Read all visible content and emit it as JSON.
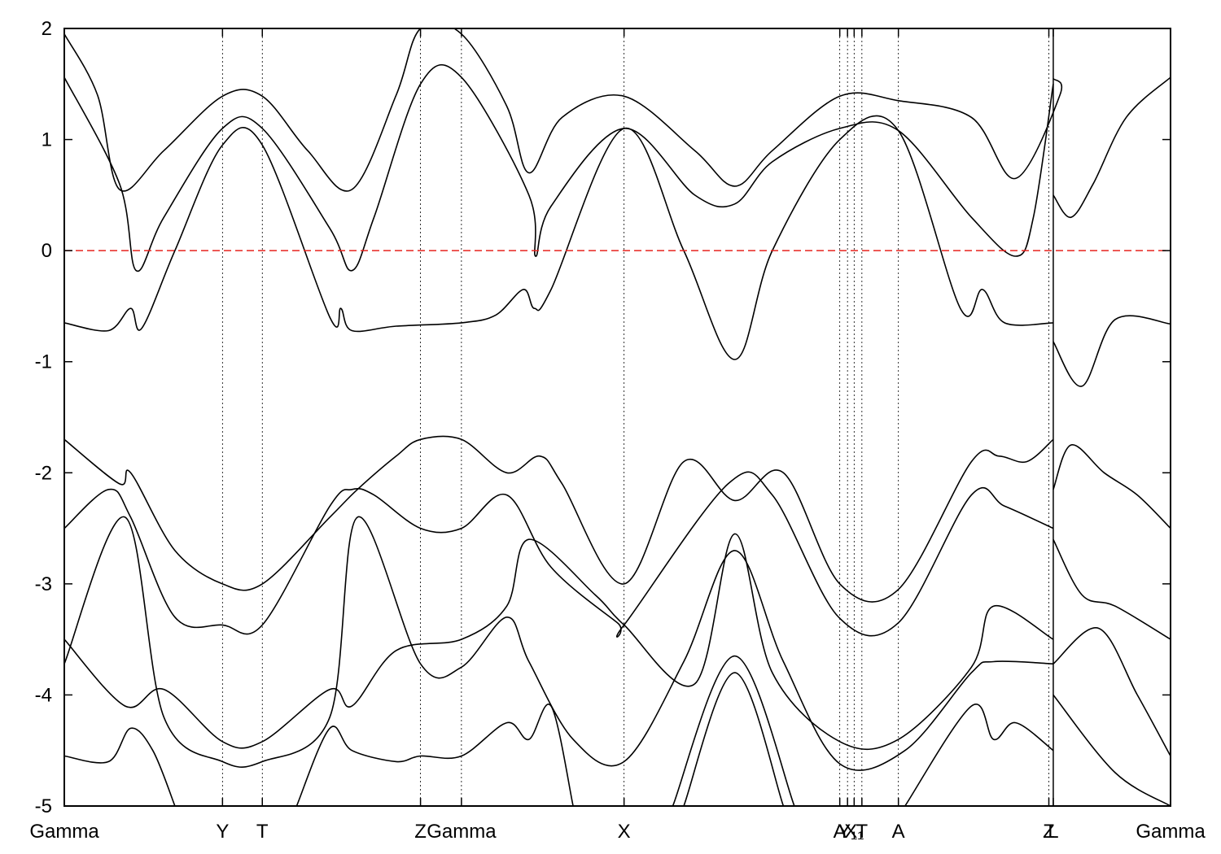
{
  "chart_data": {
    "type": "line",
    "title": "",
    "xlabel": "",
    "ylabel": "",
    "ylim": [
      -5,
      2
    ],
    "xlim": [
      0,
      1
    ],
    "grid": "vertical dotted lines at high-symmetry points",
    "yticks": [
      "2",
      "1",
      "0",
      "-1",
      "-2",
      "-3",
      "-4",
      "-5"
    ],
    "ytick_values": [
      2,
      1,
      0,
      -1,
      -2,
      -3,
      -4,
      -5
    ],
    "xticks": [
      {
        "label": "Gamma",
        "x": 0.0
      },
      {
        "label": "Y",
        "x": 0.143
      },
      {
        "label": "T",
        "x": 0.179
      },
      {
        "label": "Z",
        "x": 0.322
      },
      {
        "label": "Gamma",
        "x": 0.359
      },
      {
        "label": "X",
        "x": 0.506
      },
      {
        "label": "A",
        "x": 0.701
      },
      {
        "label": "Y₁",
        "x": 0.708
      },
      {
        "label": "X₁",
        "x": 0.714
      },
      {
        "label": "T",
        "x": 0.721
      },
      {
        "label": "A",
        "x": 0.754
      },
      {
        "label": "Z",
        "x": 0.89
      },
      {
        "label": "L",
        "x": 0.894
      },
      {
        "label": "Gamma",
        "x": 1.0
      }
    ],
    "fermi_level": {
      "y": 0,
      "color": "#e8231f",
      "style": "dashed"
    },
    "segment_break_x": 0.894,
    "line_color": "#000000",
    "series": [
      {
        "x": [
          0,
          0.05,
          0.065,
          0.09,
          0.143,
          0.179,
          0.24,
          0.26,
          0.28,
          0.322,
          0.359,
          0.42,
          0.426,
          0.44,
          0.506,
          0.57,
          0.606,
          0.64,
          0.701,
          0.754,
          0.82,
          0.86,
          0.876,
          0.894
        ],
        "values": [
          1.56,
          0.6,
          -0.18,
          0.3,
          1.1,
          1.1,
          0.2,
          -0.18,
          0.3,
          1.5,
          1.56,
          0.5,
          -0.05,
          0.4,
          1.1,
          0.5,
          0.42,
          0.8,
          1.1,
          1.08,
          0.3,
          -0.05,
          0.3,
          1.5
        ]
      },
      {
        "x": [
          0,
          0.03,
          0.05,
          0.09,
          0.143,
          0.179,
          0.22,
          0.26,
          0.3,
          0.322,
          0.359,
          0.4,
          0.42,
          0.45,
          0.506,
          0.57,
          0.606,
          0.64,
          0.701,
          0.754,
          0.82,
          0.86,
          0.9,
          0.894
        ],
        "values": [
          1.95,
          1.4,
          0.55,
          0.9,
          1.39,
          1.39,
          0.9,
          0.55,
          1.4,
          2.0,
          1.95,
          1.3,
          0.7,
          1.2,
          1.39,
          0.9,
          0.58,
          0.9,
          1.39,
          1.35,
          1.2,
          0.65,
          1.4,
          1.55
        ]
      },
      {
        "x": [
          0,
          0.04,
          0.06,
          0.07,
          0.1,
          0.143,
          0.179,
          0.24,
          0.25,
          0.26,
          0.3,
          0.359,
          0.39,
          0.415,
          0.425,
          0.44,
          0.506,
          0.56,
          0.606,
          0.64,
          0.701,
          0.754,
          0.81,
          0.83,
          0.85,
          0.894
        ],
        "values": [
          -0.65,
          -0.72,
          -0.52,
          -0.7,
          0.0,
          0.95,
          0.95,
          -0.6,
          -0.52,
          -0.72,
          -0.68,
          -0.65,
          -0.58,
          -0.35,
          -0.52,
          -0.35,
          1.1,
          0.0,
          -0.98,
          0.0,
          1.0,
          1.08,
          -0.52,
          -0.35,
          -0.65,
          -0.65
        ]
      },
      {
        "x": [
          0.894,
          0.92,
          0.95,
          1.0
        ],
        "values": [
          -0.82,
          -1.22,
          -0.62,
          -0.66
        ]
      },
      {
        "x": [
          0.894,
          0.91,
          0.93,
          0.96,
          1.0
        ],
        "values": [
          0.5,
          0.3,
          0.6,
          1.2,
          1.56
        ]
      },
      {
        "x": [
          0,
          0.05,
          0.06,
          0.1,
          0.143,
          0.179,
          0.24,
          0.265,
          0.3,
          0.322,
          0.359,
          0.4,
          0.43,
          0.45,
          0.506,
          0.56,
          0.606,
          0.65,
          0.701,
          0.754,
          0.82,
          0.845,
          0.87,
          0.894
        ],
        "values": [
          -1.7,
          -2.1,
          -2.0,
          -2.7,
          -3.0,
          -3.0,
          -2.4,
          -2.15,
          -1.85,
          -1.7,
          -1.7,
          -2.0,
          -1.85,
          -2.1,
          -3.0,
          -1.9,
          -2.25,
          -2.0,
          -3.0,
          -3.05,
          -1.9,
          -1.85,
          -1.9,
          -1.7
        ]
      },
      {
        "x": [
          0,
          0.04,
          0.06,
          0.1,
          0.143,
          0.179,
          0.24,
          0.26,
          0.28,
          0.322,
          0.359,
          0.4,
          0.44,
          0.5,
          0.506,
          0.6,
          0.64,
          0.7,
          0.754,
          0.82,
          0.85,
          0.894
        ],
        "values": [
          -2.5,
          -2.15,
          -2.4,
          -3.3,
          -3.37,
          -3.37,
          -2.3,
          -2.15,
          -2.2,
          -2.5,
          -2.5,
          -2.2,
          -2.85,
          -3.35,
          -3.37,
          -2.1,
          -2.2,
          -3.3,
          -3.35,
          -2.2,
          -2.3,
          -2.5
        ]
      },
      {
        "x": [
          0.894,
          0.91,
          0.94,
          0.97,
          1.0
        ],
        "values": [
          -2.15,
          -1.75,
          -2.0,
          -2.2,
          -2.5
        ]
      },
      {
        "x": [
          0,
          0.055,
          0.09,
          0.143,
          0.179,
          0.24,
          0.26,
          0.3,
          0.359,
          0.4,
          0.42,
          0.48,
          0.506,
          0.57,
          0.606,
          0.64,
          0.701,
          0.754,
          0.82,
          0.84,
          0.894
        ],
        "values": [
          -3.5,
          -4.1,
          -3.95,
          -4.42,
          -4.42,
          -3.95,
          -4.1,
          -3.6,
          -3.5,
          -3.2,
          -2.6,
          -3.1,
          -3.37,
          -3.9,
          -2.55,
          -3.8,
          -4.42,
          -4.4,
          -3.75,
          -3.2,
          -3.5
        ]
      },
      {
        "x": [
          0,
          0.055,
          0.09,
          0.143,
          0.179,
          0.24,
          0.265,
          0.322,
          0.359,
          0.4,
          0.42,
          0.46,
          0.506,
          0.56,
          0.606,
          0.65,
          0.701,
          0.76,
          0.82,
          0.84,
          0.894
        ],
        "values": [
          -3.72,
          -2.4,
          -4.2,
          -4.6,
          -4.6,
          -4.2,
          -2.4,
          -3.72,
          -3.75,
          -3.3,
          -3.7,
          -4.4,
          -4.6,
          -3.7,
          -2.7,
          -3.7,
          -4.62,
          -4.5,
          -3.8,
          -3.7,
          -3.72
        ]
      },
      {
        "x": [
          0.894,
          0.92,
          0.95,
          1.0
        ],
        "values": [
          -2.6,
          -3.1,
          -3.2,
          -3.5
        ]
      },
      {
        "x": [
          0.894,
          0.935,
          0.97,
          1.0
        ],
        "values": [
          -3.72,
          -3.4,
          -4.0,
          -4.55
        ]
      },
      {
        "x": [
          0,
          0.04,
          0.06,
          0.08,
          0.1
        ],
        "values": [
          -4.55,
          -4.6,
          -4.3,
          -4.5,
          -5.0
        ]
      },
      {
        "x": [
          0.21,
          0.24,
          0.26,
          0.3,
          0.322,
          0.359,
          0.4,
          0.42,
          0.44,
          0.46
        ],
        "values": [
          -5.0,
          -4.3,
          -4.5,
          -4.6,
          -4.55,
          -4.55,
          -4.25,
          -4.4,
          -4.1,
          -5.0
        ]
      },
      {
        "x": [
          0.55,
          0.606,
          0.66
        ],
        "values": [
          -5.0,
          -3.65,
          -5.0
        ]
      },
      {
        "x": [
          0.56,
          0.606,
          0.65
        ],
        "values": [
          -5.0,
          -3.8,
          -5.0
        ]
      },
      {
        "x": [
          0.76,
          0.82,
          0.84,
          0.86,
          0.894
        ],
        "values": [
          -5.0,
          -4.1,
          -4.4,
          -4.25,
          -4.5
        ]
      },
      {
        "x": [
          0.894,
          0.95,
          1.0
        ],
        "values": [
          -4.0,
          -4.7,
          -5.0
        ]
      }
    ]
  }
}
